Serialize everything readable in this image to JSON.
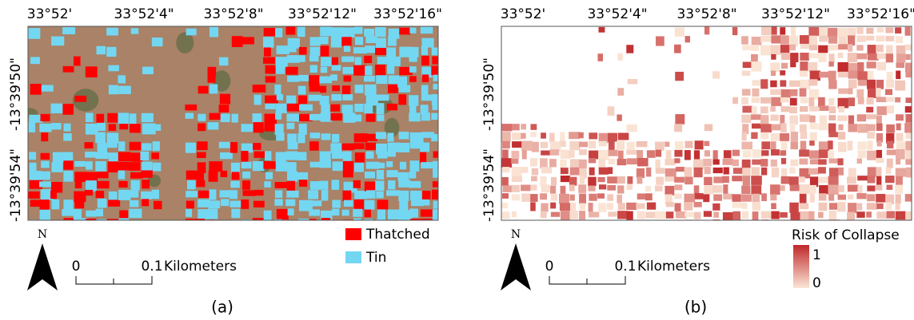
{
  "panels": [
    {
      "label": "(a)",
      "x_ticks": [
        "33°52'",
        "33°52'4\"",
        "33°52'8\"",
        "33°52'12\"",
        "33°52'16\""
      ],
      "y_ticks": [
        "-13°39'50\"",
        "-13°39'54\""
      ],
      "north": "N",
      "scale": {
        "start": "0",
        "end": "0.1",
        "unit": "Kilometers"
      },
      "legend": {
        "items": [
          {
            "name": "Thatched",
            "color": "#ff0000"
          },
          {
            "name": "Tin",
            "color": "#73d7f2"
          }
        ]
      }
    },
    {
      "label": "(b)",
      "x_ticks": [
        "33°52'",
        "33°52'4\"",
        "33°52'8\"",
        "33°52'12\"",
        "33°52'16\""
      ],
      "y_ticks": [
        "-13°39'50\"",
        "-13°39'54\""
      ],
      "north": "N",
      "scale": {
        "start": "0",
        "end": "0.1",
        "unit": "Kilometers"
      },
      "legend": {
        "title": "Risk of Collapse",
        "max": "1",
        "min": "0",
        "max_color": "#c0282a",
        "min_color": "#fbe6d6"
      }
    }
  ]
}
